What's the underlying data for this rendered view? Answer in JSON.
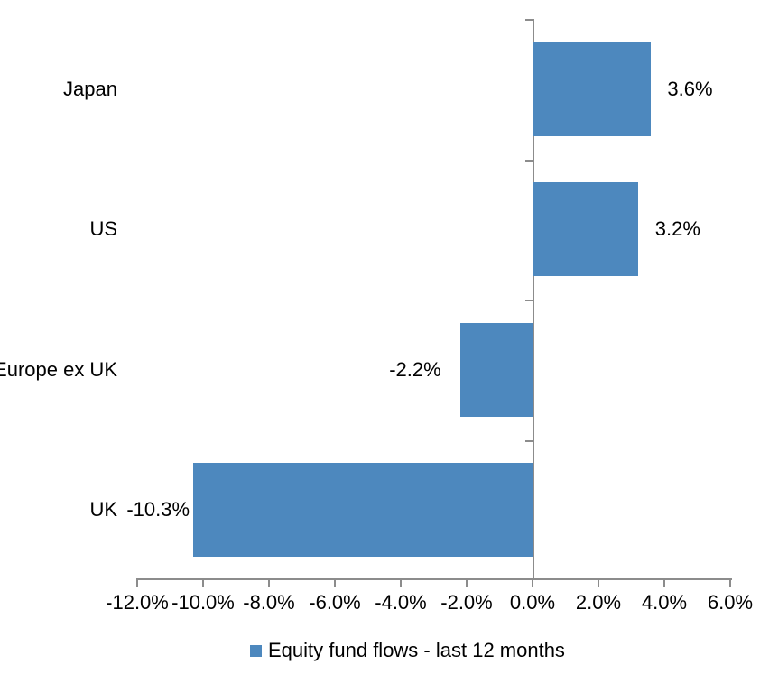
{
  "chart_data": {
    "type": "bar",
    "orientation": "horizontal",
    "series_name": "Equity fund flows - last 12 months",
    "categories": [
      "Japan",
      "US",
      "Europe ex UK",
      "UK"
    ],
    "values": [
      3.6,
      3.2,
      -2.2,
      -10.3
    ],
    "data_labels": [
      "3.6%",
      "3.2%",
      "-2.2%",
      "-10.3%"
    ],
    "x_ticks": [
      "-12.0%",
      "-10.0%",
      "-8.0%",
      "-6.0%",
      "-4.0%",
      "-2.0%",
      "0.0%",
      "2.0%",
      "4.0%",
      "6.0%"
    ],
    "x_tick_values": [
      -12,
      -10,
      -8,
      -6,
      -4,
      -2,
      0,
      2,
      4,
      6
    ],
    "xlim": [
      -12,
      6
    ],
    "grid": false,
    "legend_position": "bottom",
    "colors": {
      "bar": "#4d88be",
      "axis": "#8c8c8c",
      "text": "#000000",
      "background": "#ffffff"
    }
  }
}
